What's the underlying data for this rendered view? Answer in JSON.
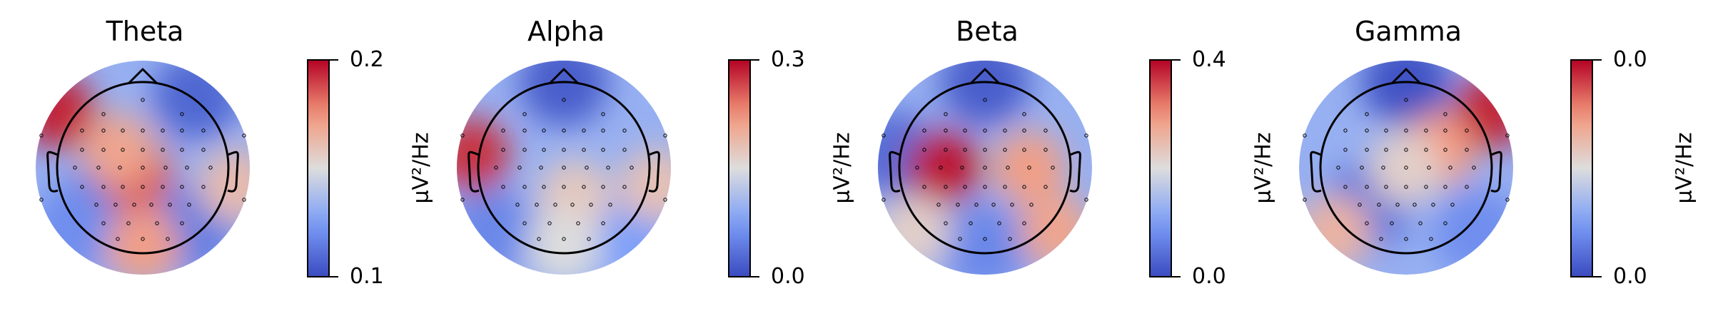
{
  "chart_data": [
    {
      "type": "heatmap",
      "title": "Theta",
      "colorbar": {
        "label": "μV²/Hz",
        "min_label": "0.1",
        "max_label": "0.2",
        "colormap": "coolwarm"
      },
      "hotspots": [
        {
          "location": "left-frontal-temporal",
          "level": 0.95
        },
        {
          "location": "central-midline",
          "level": 0.85
        },
        {
          "location": "left-fronto-central",
          "level": 0.7
        },
        {
          "location": "occipital-midline",
          "level": 0.72
        },
        {
          "location": "right-temporal",
          "level": 0.62
        }
      ],
      "coldspots": [
        {
          "location": "right-frontal",
          "level": 0.08
        },
        {
          "location": "left-parietal",
          "level": 0.12
        },
        {
          "location": "right-parieto-occipital",
          "level": 0.15
        },
        {
          "location": "left-occipital",
          "level": 0.2
        }
      ]
    },
    {
      "type": "heatmap",
      "title": "Alpha",
      "colorbar": {
        "label": "μV²/Hz",
        "min_label": "0.0",
        "max_label": "0.3",
        "colormap": "coolwarm"
      },
      "hotspots": [
        {
          "location": "left-temporal",
          "level": 0.92
        },
        {
          "location": "right-temporal",
          "level": 0.6
        },
        {
          "location": "centro-parietal",
          "level": 0.58
        },
        {
          "location": "occipital-midline",
          "level": 0.5
        }
      ],
      "coldspots": [
        {
          "location": "frontal-pole",
          "level": 0.05
        },
        {
          "location": "left-occipital",
          "level": 0.18
        },
        {
          "location": "right-occipital",
          "level": 0.25
        }
      ]
    },
    {
      "type": "heatmap",
      "title": "Beta",
      "colorbar": {
        "label": "μV²/Hz",
        "min_label": "0.0",
        "max_label": "0.4",
        "colormap": "coolwarm"
      },
      "hotspots": [
        {
          "location": "left-central",
          "level": 0.97
        },
        {
          "location": "right-central",
          "level": 0.72
        },
        {
          "location": "right-occipital",
          "level": 0.7
        },
        {
          "location": "left-occipital",
          "level": 0.55
        }
      ],
      "coldspots": [
        {
          "location": "frontal-pole",
          "level": 0.05
        },
        {
          "location": "left-temporal",
          "level": 0.1
        },
        {
          "location": "occipital-midline",
          "level": 0.18
        }
      ]
    },
    {
      "type": "heatmap",
      "title": "Gamma",
      "colorbar": {
        "label": "μV²/Hz",
        "min_label": "0.0",
        "max_label": "0.0",
        "colormap": "coolwarm"
      },
      "hotspots": [
        {
          "location": "right-frontal-temporal",
          "level": 0.95
        },
        {
          "location": "right-fronto-central",
          "level": 0.75
        },
        {
          "location": "left-occipital",
          "level": 0.65
        },
        {
          "location": "central",
          "level": 0.55
        }
      ],
      "coldspots": [
        {
          "location": "frontal-pole",
          "level": 0.02
        },
        {
          "location": "left-parietal",
          "level": 0.12
        },
        {
          "location": "right-occipital",
          "level": 0.2
        }
      ]
    }
  ]
}
